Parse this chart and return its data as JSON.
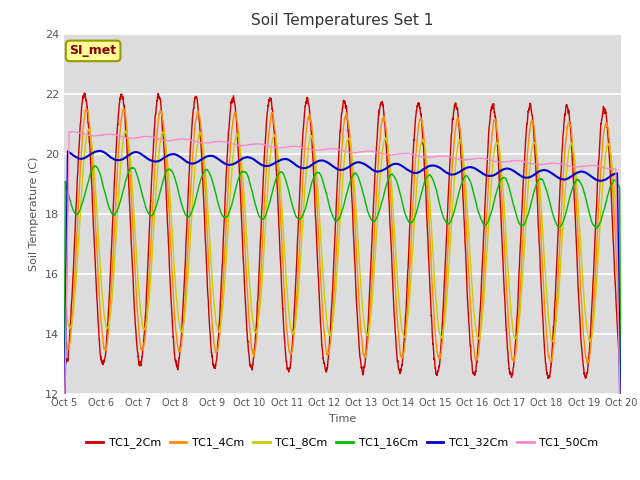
{
  "title": "Soil Temperatures Set 1",
  "xlabel": "Time",
  "ylabel": "Soil Temperature (C)",
  "ylim": [
    12,
    24
  ],
  "yticks": [
    12,
    14,
    16,
    18,
    20,
    22,
    24
  ],
  "x_tick_labels": [
    "Oct 5",
    "Oct 6",
    "Oct 7",
    "Oct 8",
    "Oct 9",
    "Oct 10",
    "Oct 11",
    "Oct 12",
    "Oct 13",
    "Oct 14",
    "Oct 15",
    "Oct 16",
    "Oct 17",
    "Oct 18",
    "Oct 19",
    "Oct 20"
  ],
  "annotation_text": "SI_met",
  "annotation_color": "#8B0000",
  "annotation_bg": "#FFFF99",
  "background_color": "#DCDCDC",
  "grid_color": "#FFFFFF",
  "series": [
    {
      "label": "TC1_2Cm",
      "color": "#CC0000",
      "lw": 1.0
    },
    {
      "label": "TC1_4Cm",
      "color": "#FF8C00",
      "lw": 1.0
    },
    {
      "label": "TC1_8Cm",
      "color": "#CCCC00",
      "lw": 1.0
    },
    {
      "label": "TC1_16Cm",
      "color": "#00BB00",
      "lw": 1.0
    },
    {
      "label": "TC1_32Cm",
      "color": "#0000CC",
      "lw": 1.5
    },
    {
      "label": "TC1_50Cm",
      "color": "#FF88CC",
      "lw": 1.0
    }
  ]
}
